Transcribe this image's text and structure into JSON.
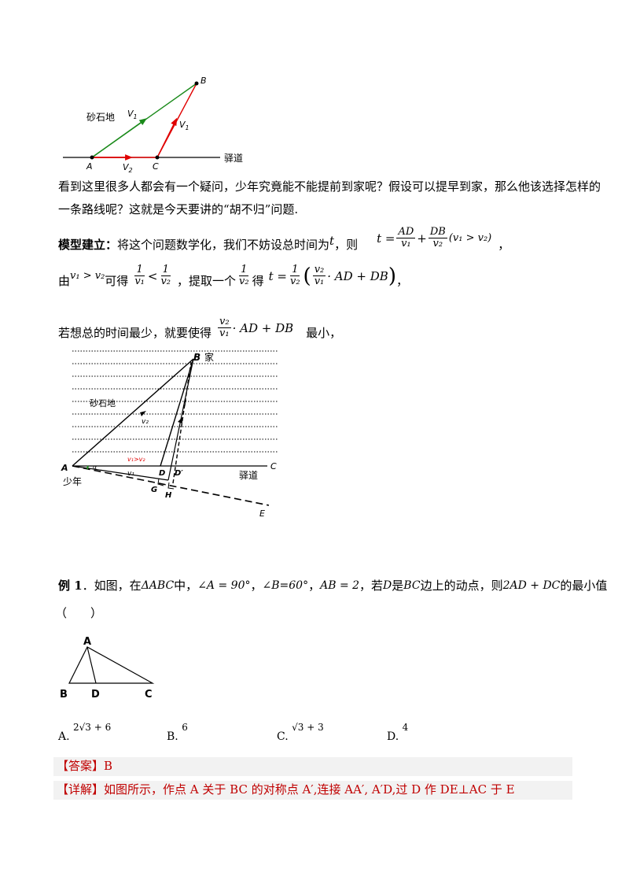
{
  "fig1": {
    "label_B": "B",
    "label_A": "A",
    "label_C": "C",
    "label_V1_green": "V",
    "label_V1_green_sub": "1",
    "label_V1_red": "V",
    "label_V1_red_sub": "1",
    "label_V2": "V",
    "label_V2_sub": "2",
    "label_gravel": "砂石地",
    "label_road": "驿道"
  },
  "para1": {
    "line1": "看到这里很多人都会有一个疑问，少年究竟能不能提前到家呢？假设可以提早到家，那么他该选择怎样的",
    "line2": "一条路线呢？这就是今天要讲的“胡不归”问题."
  },
  "model": {
    "heading": "模型建立：",
    "text1": "将这个问题数学化，我们不妨设总时间为",
    "var_t": "t",
    "text2": "，则",
    "formula1": {
      "t": "t =",
      "num1": "AD",
      "den1": "v₁",
      "plus": "+",
      "num2": "DB",
      "den2": "v₂",
      "cond": "(v₁ > v₂)"
    },
    "comma": "，",
    "text3": "由",
    "cond2": "v₁ > v₂",
    "text4": "可得",
    "ineq": {
      "num1": "1",
      "den1": "v₁",
      "lt": "<",
      "num2": "1",
      "den2": "v₂"
    },
    "text5": "，提取一个",
    "extract": {
      "num": "1",
      "den": "v₂"
    },
    "text6": "得",
    "formula2": {
      "t": "t =",
      "num": "1",
      "den": "v₂",
      "inner_num": "v₂",
      "inner_den": "v₁",
      "rest": "· AD + DB"
    },
    "text7": "若想总的时间最少，就要使得",
    "formula3": {
      "num": "v₂",
      "den": "v₁",
      "rest": "· AD + DB"
    },
    "text8": "最小，"
  },
  "fig2": {
    "label_B": "B",
    "label_home": "家",
    "label_gravel": "砂石地",
    "label_v2": "v₂",
    "label_l": "l",
    "label_cond": "v₁>v₂",
    "label_v1": "v₁",
    "label_A": "A",
    "label_youth": "少年",
    "label_alpha": "α",
    "label_D": "D",
    "label_Dp": "D′",
    "label_G": "G",
    "label_H": "H",
    "label_road": "驿道",
    "label_C": "C",
    "label_E": "E"
  },
  "example": {
    "label": "例 1",
    "text1": "．如图，在",
    "tri": "ΔABC",
    "text2": "中，",
    "angleA": "∠A = 90°",
    "sep1": "，",
    "angleB": "∠B=60°",
    "sep2": "，",
    "ab": "AB = 2",
    "text3": "，若",
    "d": "D",
    "text4": "是",
    "bc": "BC",
    "text5": "边上的动点，则",
    "expr": "2AD + DC",
    "text6": "的最小值",
    "paren": "（　　）"
  },
  "fig3": {
    "label_A": "A",
    "label_B": "B",
    "label_D": "D",
    "label_C": "C"
  },
  "options": [
    {
      "letter": "A.",
      "value": "2√3 + 6"
    },
    {
      "letter": "B.",
      "value": "6"
    },
    {
      "letter": "C.",
      "value": "√3 + 3"
    },
    {
      "letter": "D.",
      "value": "4"
    }
  ],
  "answer": {
    "tag": "【答案】",
    "value": "B"
  },
  "detail": {
    "tag": "【详解】",
    "text": "如图所示，作点 A 关于 BC 的对称点 A′,连接 AA′, A′D,过 D 作 DE⊥AC 于 E"
  }
}
